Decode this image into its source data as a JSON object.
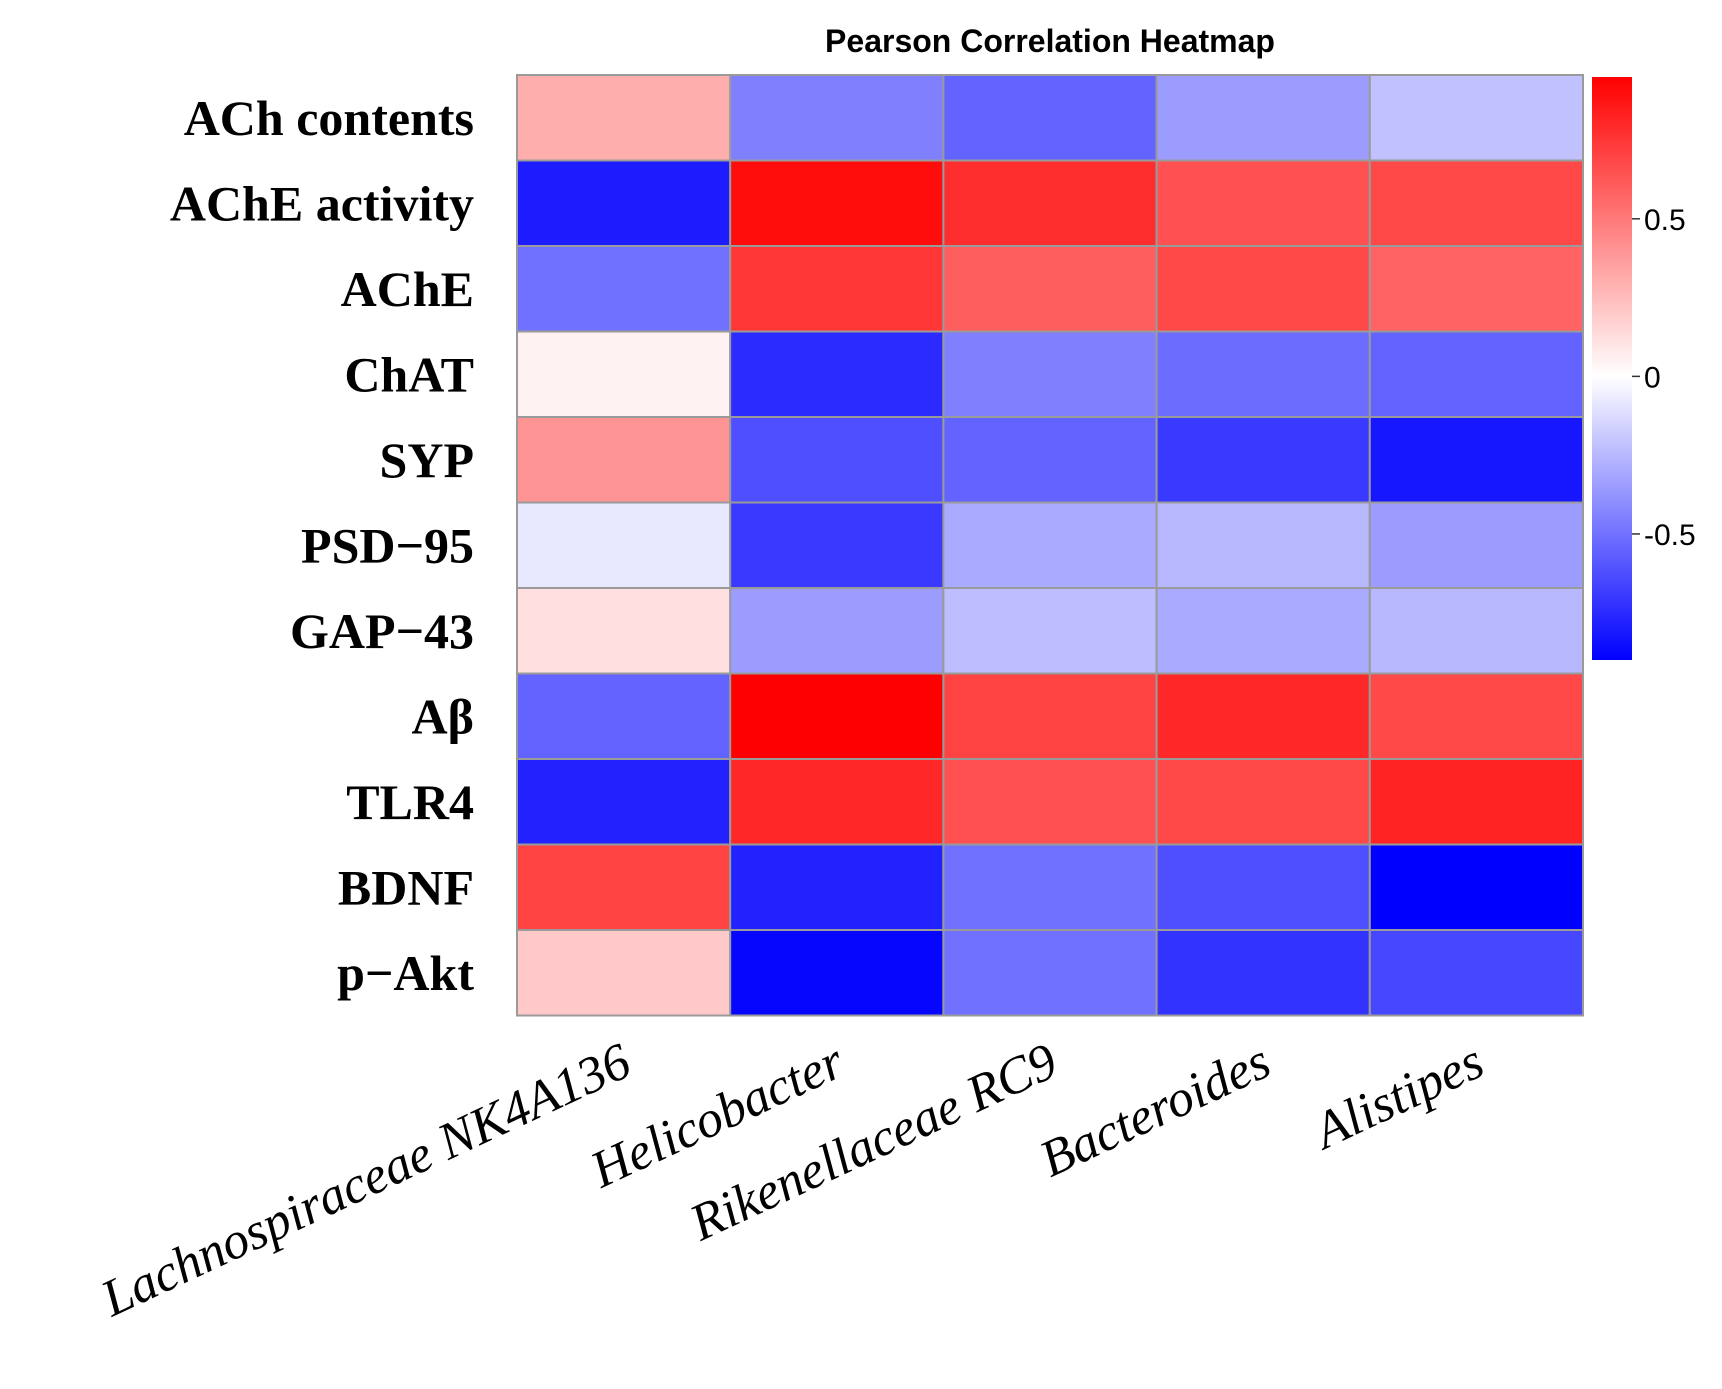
{
  "chart_data": {
    "type": "heatmap",
    "title": "Pearson Correlation Heatmap",
    "rows": [
      "ACh contents",
      "AChE activity",
      "AChE",
      "ChAT",
      "SYP",
      "PSD−95",
      "GAP−43",
      "Aβ",
      "TLR4",
      "BDNF",
      "p−Akt"
    ],
    "columns": [
      "Lachnospiraceae NK4A136",
      "Helicobacter",
      "Rikenellaceae RC9",
      "Bacteroides",
      "Alistipes"
    ],
    "values": [
      [
        0.3,
        -0.45,
        -0.55,
        -0.35,
        -0.22
      ],
      [
        -0.8,
        0.9,
        0.78,
        0.65,
        0.68
      ],
      [
        -0.5,
        0.75,
        0.6,
        0.68,
        0.58
      ],
      [
        0.05,
        -0.75,
        -0.45,
        -0.52,
        -0.55
      ],
      [
        0.4,
        -0.62,
        -0.55,
        -0.7,
        -0.82
      ],
      [
        -0.08,
        -0.7,
        -0.3,
        -0.25,
        -0.35
      ],
      [
        0.12,
        -0.35,
        -0.23,
        -0.3,
        -0.25
      ],
      [
        -0.55,
        0.95,
        0.7,
        0.8,
        0.68
      ],
      [
        -0.78,
        0.8,
        0.65,
        0.68,
        0.82
      ],
      [
        0.7,
        -0.78,
        -0.5,
        -0.62,
        -0.9
      ],
      [
        0.2,
        -0.88,
        -0.5,
        -0.72,
        -0.65
      ]
    ],
    "colorbar": {
      "ticks": [
        0.5,
        0,
        -0.5
      ],
      "tick_labels": [
        "0.5",
        "0",
        "-0.5"
      ],
      "range": [
        -0.9,
        0.95
      ],
      "colors": {
        "low": "#0000ff",
        "mid": "#ffffff",
        "high": "#ff0000"
      }
    },
    "grid_color": "#9a9a9a"
  }
}
